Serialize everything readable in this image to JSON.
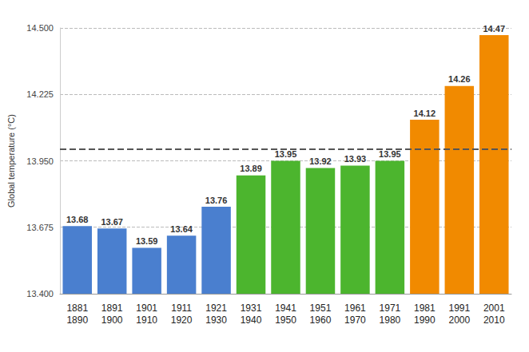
{
  "chart_data": {
    "type": "bar",
    "y_label": "Global temperature (°C)",
    "categories": [
      "1881\n1890",
      "1891\n1900",
      "1901\n1910",
      "1911\n1920",
      "1921\n1930",
      "1931\n1940",
      "1941\n1950",
      "1951\n1960",
      "1961\n1970",
      "1971\n1980",
      "1981\n1990",
      "1991\n2000",
      "2001\n2010"
    ],
    "values": [
      13.68,
      13.67,
      13.59,
      13.64,
      13.76,
      13.89,
      13.95,
      13.92,
      13.93,
      13.95,
      14.12,
      14.26,
      14.47
    ],
    "colors": [
      "#4a7fcf",
      "#4a7fcf",
      "#4a7fcf",
      "#4a7fcf",
      "#4a7fcf",
      "#4cb52e",
      "#4cb52e",
      "#4cb52e",
      "#4cb52e",
      "#4cb52e",
      "#f18a00",
      "#f18a00",
      "#f18a00"
    ],
    "ylim": [
      13.4,
      14.5
    ],
    "yticks": [
      {
        "value": 13.4,
        "label": "13.400"
      },
      13.675,
      {
        "value": 13.95,
        "label": "13.950"
      },
      14.225,
      {
        "value": 14.5,
        "label": "14.500"
      }
    ],
    "hline": 14.0,
    "data_labels": true,
    "grid": true
  }
}
